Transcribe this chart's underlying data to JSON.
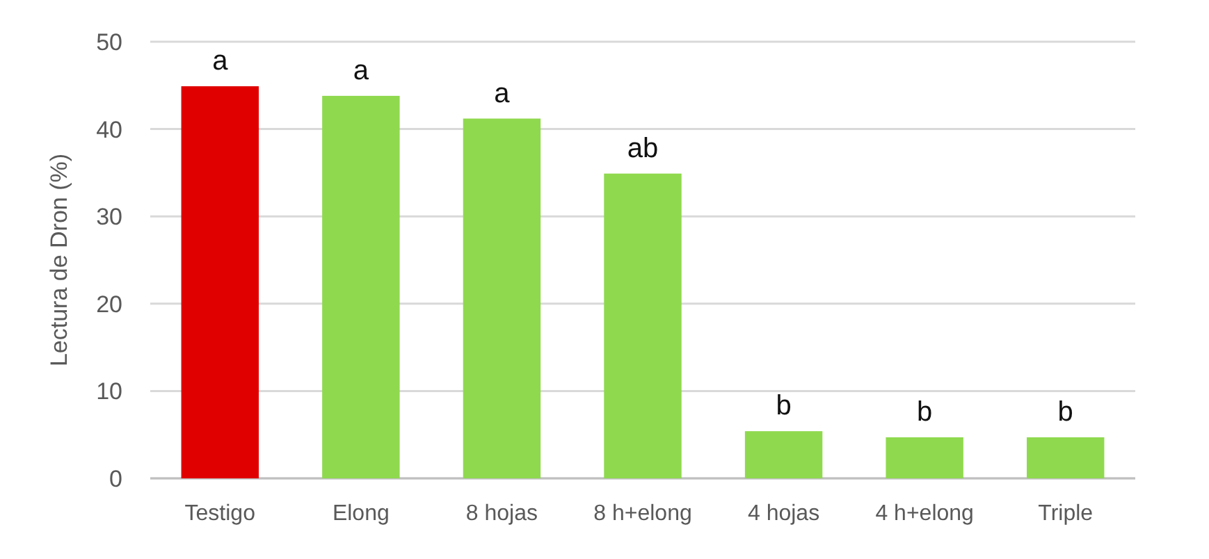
{
  "chart_data": {
    "type": "bar",
    "ylabel": "Lectura de Dron (%)",
    "categories": [
      "Testigo",
      "Elong",
      "8 hojas",
      "8 h+elong",
      "4 hojas",
      "4 h+elong",
      "Triple"
    ],
    "values": [
      44.9,
      43.8,
      41.2,
      34.9,
      5.4,
      4.7,
      4.7
    ],
    "colors": [
      "#e00000",
      "#8fd94e",
      "#8fd94e",
      "#8fd94e",
      "#8fd94e",
      "#8fd94e",
      "#8fd94e"
    ],
    "ylim": [
      0,
      50
    ],
    "yticks": [
      0,
      10,
      20,
      30,
      40,
      50
    ],
    "grid": "y",
    "annotations": [
      {
        "text": "a",
        "x": "Testigo",
        "y": 44.9
      },
      {
        "text": "a",
        "x": "Elong",
        "y": 43.8
      },
      {
        "text": "a",
        "x": "8 hojas",
        "y": 41.2
      },
      {
        "text": "ab",
        "x": "8 h+elong",
        "y": 34.9
      },
      {
        "text": "b",
        "x": "4 hojas",
        "y": 5.4
      },
      {
        "text": "b",
        "x": "4 h+elong",
        "y": 4.7
      },
      {
        "text": "b",
        "x": "Triple",
        "y": 4.7
      }
    ]
  }
}
